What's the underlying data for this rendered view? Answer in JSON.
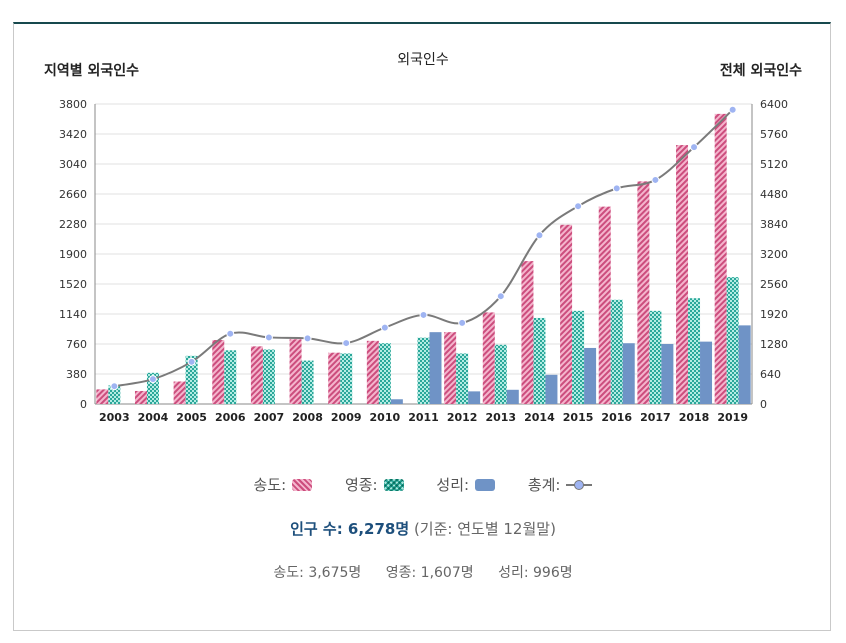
{
  "chart_data": {
    "type": "bar",
    "title": "외국인수",
    "ylabel_left": "지역별 외국인수",
    "ylabel_right": "전체 외국인수",
    "categories": [
      "2003",
      "2004",
      "2005",
      "2006",
      "2007",
      "2008",
      "2009",
      "2010",
      "2011",
      "2012",
      "2013",
      "2014",
      "2015",
      "2016",
      "2017",
      "2018",
      "2019"
    ],
    "left_axis": {
      "min": 0,
      "max": 3800,
      "ticks": [
        0,
        380,
        760,
        1140,
        1520,
        1900,
        2280,
        2660,
        3040,
        3420,
        3800
      ]
    },
    "right_axis": {
      "min": 0,
      "max": 6400,
      "ticks": [
        0,
        640,
        1280,
        1920,
        2560,
        3200,
        3840,
        4480,
        5120,
        5760,
        6400
      ]
    },
    "series": [
      {
        "name": "송도",
        "axis": "left",
        "color": "#cc4d7d",
        "values": [
          185,
          165,
          285,
          810,
          730,
          820,
          650,
          800,
          0,
          910,
          1160,
          1810,
          2270,
          2500,
          2820,
          3280,
          3675
        ]
      },
      {
        "name": "영종",
        "axis": "left",
        "color": "#2ba79a",
        "values": [
          235,
          395,
          610,
          680,
          690,
          550,
          640,
          770,
          840,
          640,
          750,
          1090,
          1180,
          1320,
          1180,
          1340,
          1607
        ]
      },
      {
        "name": "성리",
        "axis": "left",
        "color": "#6f93c6",
        "values": [
          0,
          0,
          0,
          0,
          0,
          0,
          0,
          60,
          910,
          160,
          180,
          370,
          710,
          770,
          760,
          790,
          996
        ]
      },
      {
        "name": "총계",
        "axis": "right",
        "type": "line",
        "color": "#777777",
        "values": [
          380,
          530,
          900,
          1500,
          1420,
          1400,
          1300,
          1630,
          1900,
          1730,
          2300,
          3600,
          4220,
          4600,
          4780,
          5480,
          6278
        ]
      }
    ]
  },
  "legend": {
    "songdo": "송도:",
    "yeongjong": "영종:",
    "seongri": "성리:",
    "total": "총계:"
  },
  "summary": {
    "label": "인구 수: 6,278명",
    "basis": " (기준: 연도별 12월말)"
  },
  "detail": {
    "songdo": "송도: 3,675명",
    "yeongjong": "영종: 1,607명",
    "seongri": "성리: 996명"
  }
}
